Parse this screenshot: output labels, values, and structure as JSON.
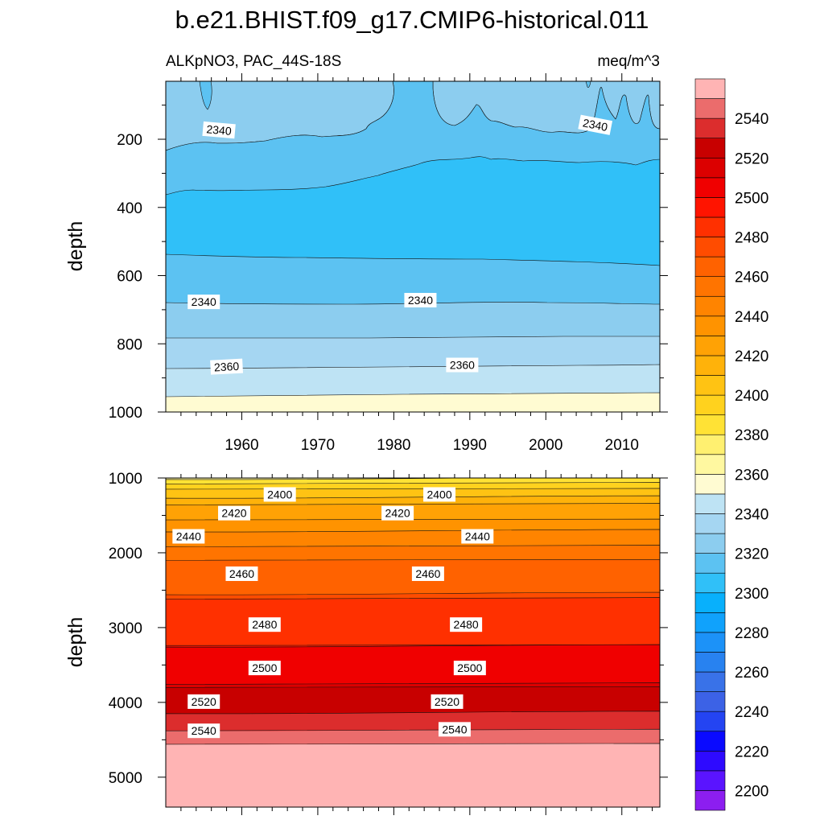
{
  "chart_data": {
    "type": "contour",
    "title": "b.e21.BHIST.f09_g17.CMIP6-historical.011",
    "left_subtitle": "ALKpNO3, PAC_44S-18S",
    "right_subtitle": "meq/m^3",
    "x": {
      "ticks": [
        1960,
        1970,
        1980,
        1990,
        2000,
        2010
      ],
      "range": [
        1950,
        2015
      ]
    },
    "colorbar": {
      "levels": [
        2200,
        2210,
        2220,
        2230,
        2240,
        2250,
        2260,
        2270,
        2280,
        2290,
        2300,
        2310,
        2320,
        2330,
        2340,
        2350,
        2360,
        2370,
        2380,
        2390,
        2400,
        2410,
        2420,
        2430,
        2440,
        2450,
        2460,
        2470,
        2480,
        2490,
        2500,
        2510,
        2520,
        2530,
        2540,
        2550
      ],
      "labels": [
        "2200",
        "2220",
        "2240",
        "2260",
        "2280",
        "2300",
        "2320",
        "2340",
        "2360",
        "2380",
        "2400",
        "2420",
        "2440",
        "2460",
        "2480",
        "2500",
        "2520",
        "2540"
      ],
      "colors": [
        "#8c1ef0",
        "#5a14ff",
        "#2e0aff",
        "#0a0aff",
        "#2444f2",
        "#3c62e6",
        "#3972e8",
        "#2882f0",
        "#1c92f8",
        "#10a2fc",
        "#08b0fc",
        "#30c0f8",
        "#5cc2f2",
        "#8ccdef",
        "#a5d6f2",
        "#bee3f4",
        "#fffbd2",
        "#fff8a0",
        "#fff070",
        "#ffe235",
        "#ffd21e",
        "#ffc313",
        "#ffb20a",
        "#ffa205",
        "#ff9300",
        "#ff8400",
        "#ff7400",
        "#ff6200",
        "#ff4c00",
        "#ff3000",
        "#ff1400",
        "#f00000",
        "#dc0000",
        "#c80000",
        "#dc2d2d",
        "#eb6c6c",
        "#ffb4b4"
      ]
    },
    "panels": [
      {
        "ylabel": "depth",
        "y_ticks": [
          200,
          400,
          600,
          800,
          1000
        ],
        "y_range": [
          30,
          1000
        ],
        "contour_labels": [
          {
            "text": "2340",
            "x": 1957,
            "y": 173,
            "rot": 5
          },
          {
            "text": "2340",
            "x": 2006.5,
            "y": 158,
            "rot": 11
          },
          {
            "text": "2340",
            "x": 1955,
            "y": 677,
            "rot": 0
          },
          {
            "text": "2340",
            "x": 1983.5,
            "y": 672,
            "rot": 0
          },
          {
            "text": "2360",
            "x": 1958,
            "y": 867,
            "rot": -3
          },
          {
            "text": "2360",
            "x": 1989,
            "y": 862,
            "rot": 0
          }
        ]
      },
      {
        "ylabel": "depth",
        "y_ticks": [
          1000,
          2000,
          3000,
          4000,
          5000
        ],
        "y_range": [
          1000,
          5400
        ],
        "contour_labels": [
          {
            "text": "2400",
            "x": 1965,
            "y": 1220
          },
          {
            "text": "2400",
            "x": 1986,
            "y": 1220
          },
          {
            "text": "2420",
            "x": 1959,
            "y": 1470
          },
          {
            "text": "2420",
            "x": 1980.5,
            "y": 1470
          },
          {
            "text": "2440",
            "x": 1953,
            "y": 1780
          },
          {
            "text": "2440",
            "x": 1991,
            "y": 1780
          },
          {
            "text": "2460",
            "x": 1960,
            "y": 2280
          },
          {
            "text": "2460",
            "x": 1984.5,
            "y": 2280
          },
          {
            "text": "2480",
            "x": 1963,
            "y": 2960
          },
          {
            "text": "2480",
            "x": 1989.5,
            "y": 2960
          },
          {
            "text": "2500",
            "x": 1963,
            "y": 3540
          },
          {
            "text": "2500",
            "x": 1990,
            "y": 3540
          },
          {
            "text": "2520",
            "x": 1955,
            "y": 3990
          },
          {
            "text": "2520",
            "x": 1987,
            "y": 3990
          },
          {
            "text": "2540",
            "x": 1955,
            "y": 4380
          },
          {
            "text": "2540",
            "x": 1988,
            "y": 4360
          }
        ]
      }
    ]
  }
}
